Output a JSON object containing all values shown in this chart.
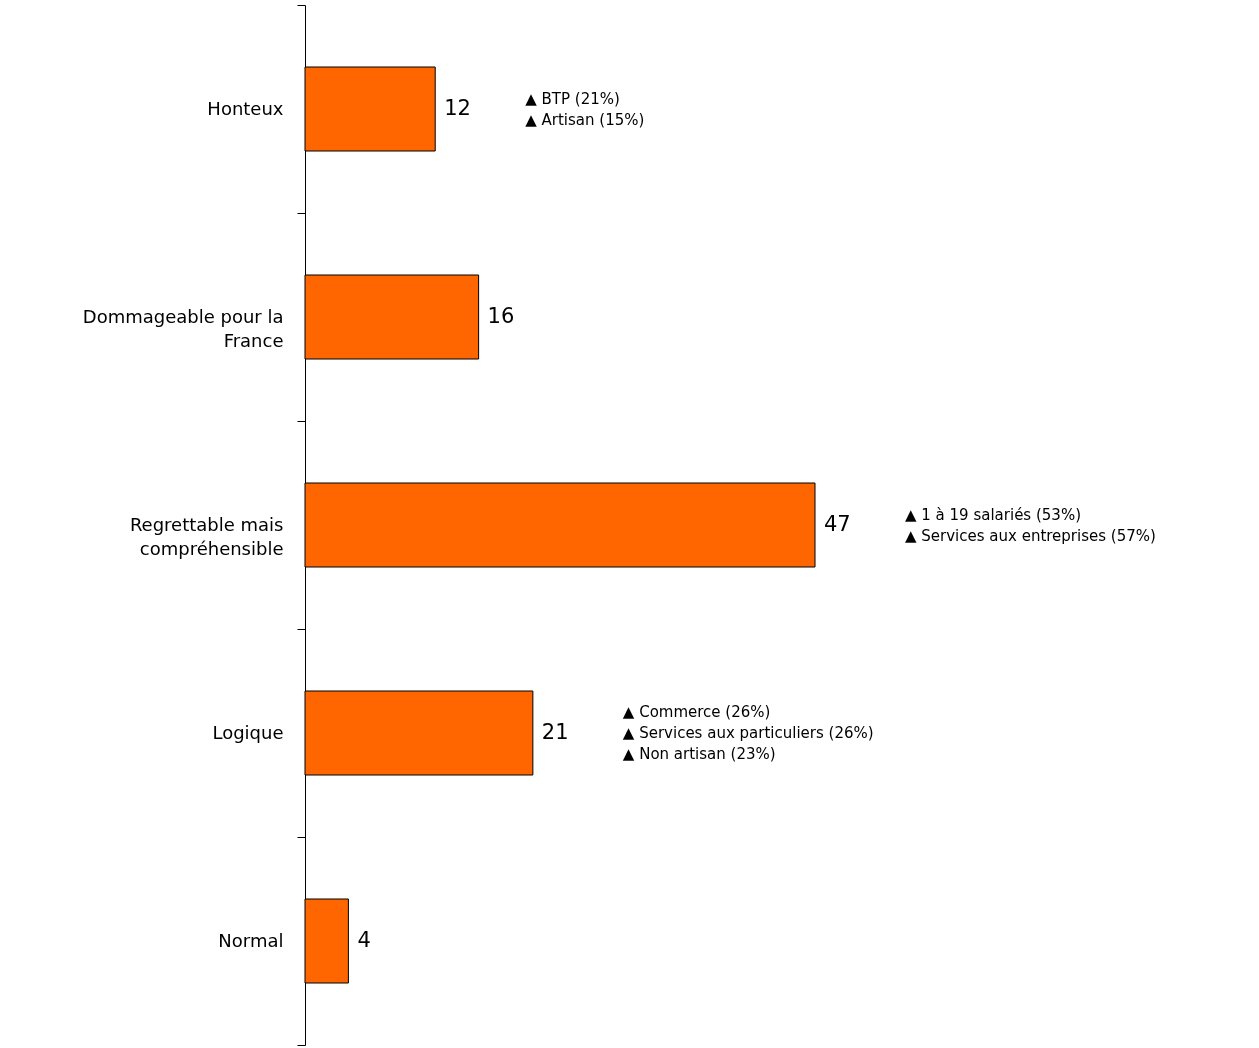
{
  "chart_data": {
    "type": "bar",
    "orientation": "horizontal",
    "categories": [
      "Honteux",
      "Dommageable pour la France",
      "Regrettable mais compréhensible",
      "Logique",
      "Normal"
    ],
    "values": [
      12,
      16,
      47,
      21,
      4
    ],
    "color": "#ff6600",
    "data_labels": true,
    "annotations": [
      "▲ BTP (21%)",
      "▲ Artisan (15%)",
      "▲ 1 à 19 salariés (53%)",
      "▲ Services aux entreprises (57%)",
      "▲ Commerce (26%)",
      "▲ Services aux particuliers (26%)",
      "▲ Non artisan (23%)"
    ]
  }
}
